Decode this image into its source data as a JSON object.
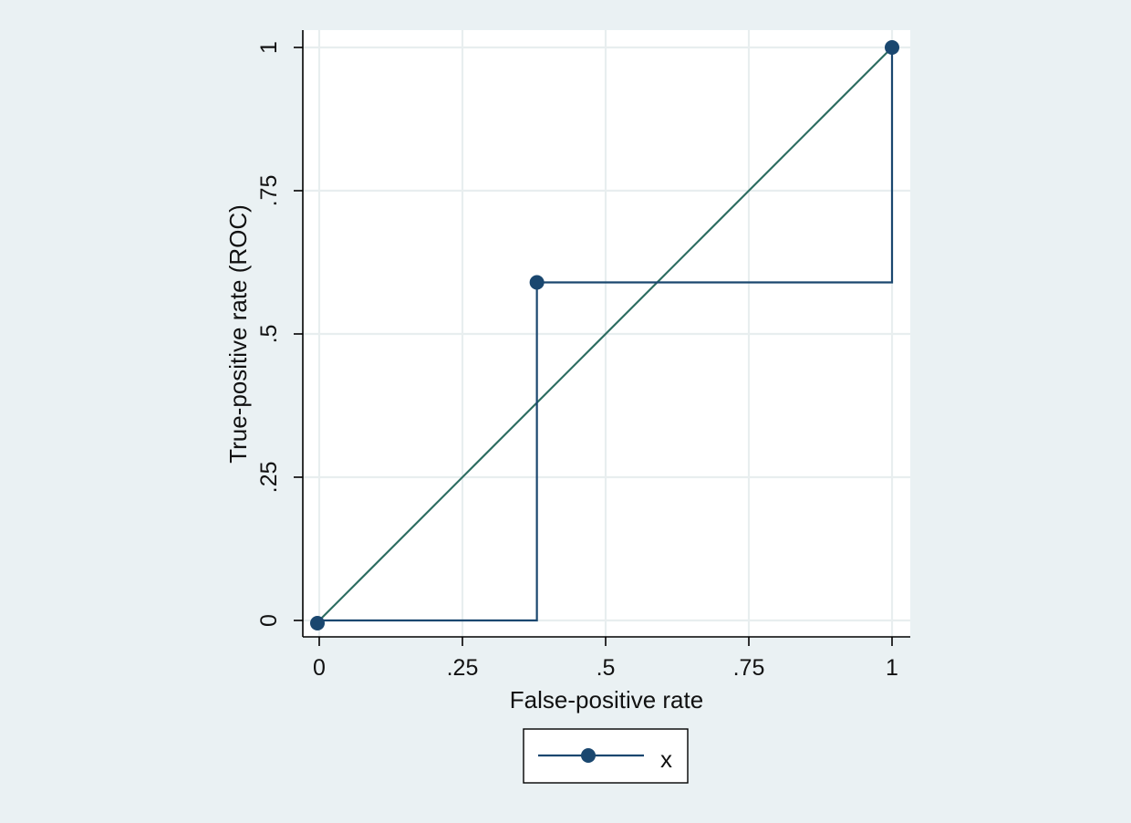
{
  "chart_data": {
    "type": "line",
    "title": "",
    "xlabel": "False-positive rate",
    "ylabel": "True-positive rate (ROC)",
    "xlim": [
      0,
      1
    ],
    "ylim": [
      0,
      1
    ],
    "x_ticks": [
      {
        "value": 0,
        "label": "0"
      },
      {
        "value": 0.25,
        "label": ".25"
      },
      {
        "value": 0.5,
        "label": ".5"
      },
      {
        "value": 0.75,
        "label": ".75"
      },
      {
        "value": 1,
        "label": "1"
      }
    ],
    "y_ticks": [
      {
        "value": 0,
        "label": "0"
      },
      {
        "value": 0.25,
        "label": ".25"
      },
      {
        "value": 0.5,
        "label": ".5"
      },
      {
        "value": 0.75,
        "label": ".75"
      },
      {
        "value": 1,
        "label": "1"
      }
    ],
    "grid": true,
    "series": [
      {
        "name": "x",
        "color": "#1a476f",
        "points": [
          {
            "x": 0,
            "y": 0
          },
          {
            "x": 0.38,
            "y": 0.59
          },
          {
            "x": 1,
            "y": 1
          }
        ]
      }
    ],
    "step_line": {
      "color": "#1a476f",
      "points": [
        {
          "x": 0,
          "y": 0
        },
        {
          "x": 0.38,
          "y": 0
        },
        {
          "x": 0.38,
          "y": 0.59
        },
        {
          "x": 1,
          "y": 0.59
        },
        {
          "x": 1,
          "y": 1
        }
      ]
    },
    "reference_line": {
      "color": "#2e6e62",
      "points": [
        {
          "x": 0,
          "y": 0
        },
        {
          "x": 1,
          "y": 1
        }
      ]
    },
    "legend": {
      "position": "bottom",
      "entries": [
        {
          "label": "x",
          "color": "#1a476f"
        }
      ]
    }
  }
}
